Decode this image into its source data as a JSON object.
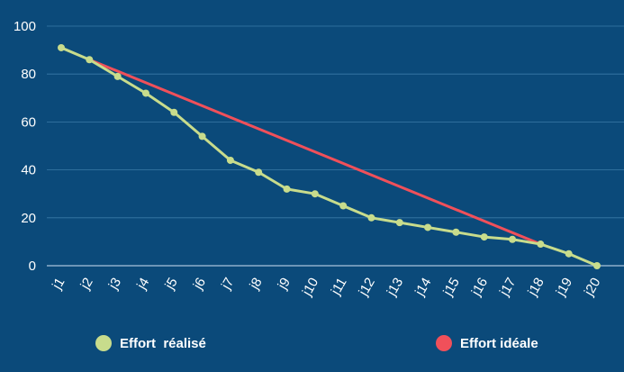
{
  "chart_data": {
    "type": "line",
    "title": "",
    "xlabel": "",
    "ylabel": "",
    "categories": [
      "j1",
      "j2",
      "j3",
      "j4",
      "j5",
      "j6",
      "j7",
      "j8",
      "j9",
      "j10",
      "j11",
      "j12",
      "j13",
      "j14",
      "j15",
      "j16",
      "j17",
      "j18",
      "j19",
      "j20"
    ],
    "ylim": [
      0,
      100
    ],
    "yticks": [
      0,
      20,
      40,
      60,
      80,
      100
    ],
    "grid": true,
    "legend_position": "bottom",
    "series": [
      {
        "name": "Effort  réalisé",
        "color": "#c8dc8c",
        "markers": true,
        "values": [
          91,
          86,
          79,
          72,
          64,
          54,
          44,
          39,
          32,
          30,
          25,
          20,
          18,
          16,
          14,
          12,
          11,
          9,
          5,
          0
        ]
      },
      {
        "name": "Effort idéale",
        "color": "#f0505a",
        "markers": false,
        "x": [
          "j2",
          "j18"
        ],
        "values": [
          86,
          9
        ]
      }
    ]
  },
  "colors": {
    "background": "#0b4a7a",
    "grid": "#3a7aa8",
    "axis": "#a9c4dc",
    "text": "#ffffff"
  }
}
